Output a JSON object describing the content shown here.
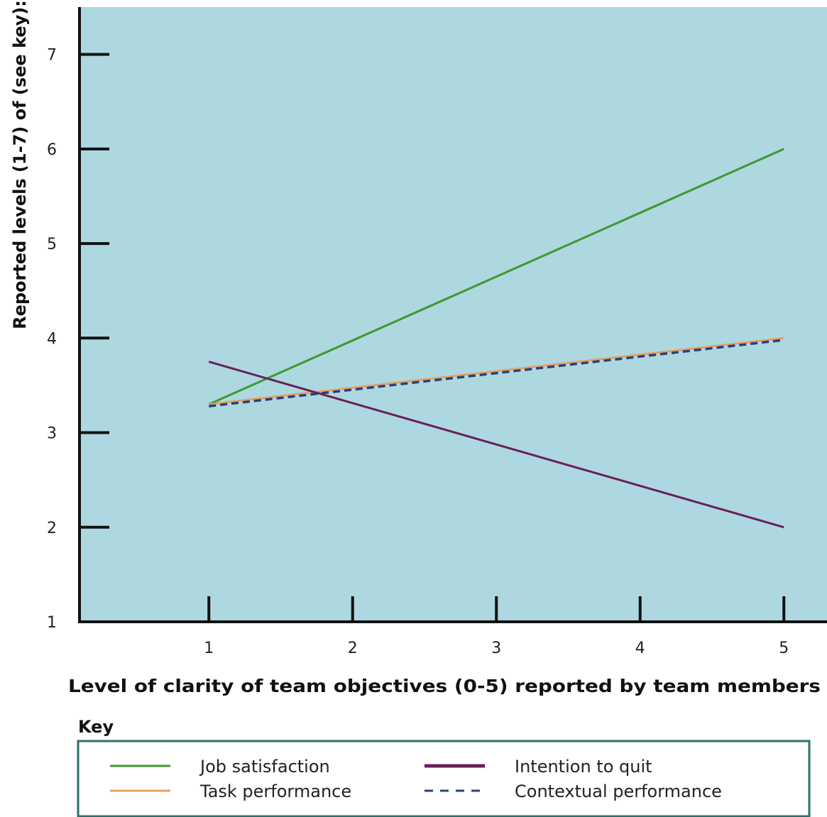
{
  "chart_data": {
    "type": "line",
    "title": "",
    "xlabel": "Level of clarity of team objectives (0-5) reported by team members",
    "ylabel": "Reported levels (1-7) of (see key):",
    "xlim": [
      0.1,
      5.3
    ],
    "ylim": [
      1,
      7.5
    ],
    "x_ticks": [
      1,
      2,
      3,
      4,
      5
    ],
    "y_ticks": [
      1,
      2,
      3,
      4,
      5,
      6,
      7
    ],
    "grid": false,
    "background_color": "#add8e0",
    "legend_title": "Key",
    "legend_position": "bottom",
    "series": [
      {
        "name": "Job satisfaction",
        "color": "#3c9a2a",
        "dash": "solid",
        "x": [
          1,
          5
        ],
        "y": [
          3.3,
          6.0
        ]
      },
      {
        "name": "Task performance",
        "color": "#e8a060",
        "dash": "solid",
        "x": [
          1,
          5
        ],
        "y": [
          3.3,
          4.0
        ]
      },
      {
        "name": "Intention to quit",
        "color": "#6a1f5a",
        "dash": "solid",
        "x": [
          1,
          5
        ],
        "y": [
          3.75,
          2.0
        ]
      },
      {
        "name": "Contextual performance",
        "color": "#2c3f7a",
        "dash": "dashed",
        "x": [
          1,
          5
        ],
        "y": [
          3.28,
          3.98
        ]
      }
    ]
  }
}
